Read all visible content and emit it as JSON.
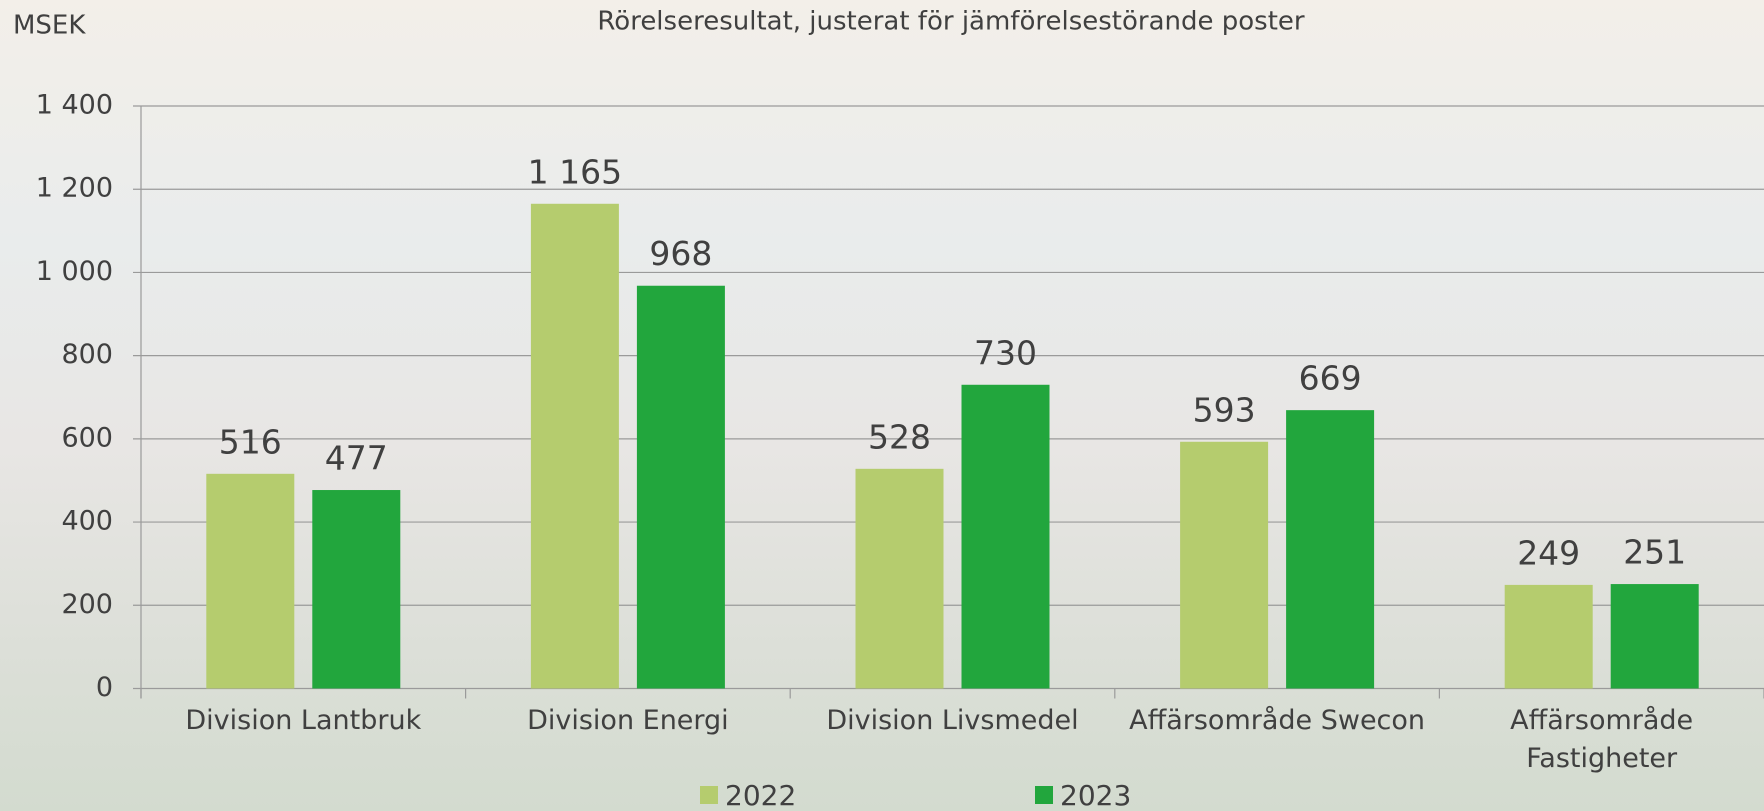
{
  "chart_data": {
    "type": "bar",
    "title": "Rörelseresultat, justerat för jämförelsestörande poster",
    "y_label": "MSEK",
    "categories": [
      "Division Lantbruk",
      "Division Energi",
      "Division Livsmedel",
      "Affärsområde Swecon",
      "Affärsområde Fastigheter"
    ],
    "series": [
      {
        "name": "2022",
        "color": "#b5cc6e",
        "values": [
          516,
          1165,
          528,
          593,
          249
        ],
        "value_labels": [
          "516",
          "1 165",
          "528",
          "593",
          "249"
        ]
      },
      {
        "name": "2023",
        "color": "#22a63d",
        "values": [
          477,
          968,
          730,
          669,
          251
        ],
        "value_labels": [
          "477",
          "968",
          "730",
          "669",
          "251"
        ]
      }
    ],
    "ylim": [
      0,
      1400
    ],
    "yticks": [
      0,
      200,
      400,
      600,
      800,
      {
        "value": 1000,
        "label": "1 000"
      },
      {
        "value": 1200,
        "label": "1 200"
      },
      {
        "value": 1400,
        "label": "1 400"
      }
    ],
    "grid": true,
    "legend": "bottom"
  }
}
